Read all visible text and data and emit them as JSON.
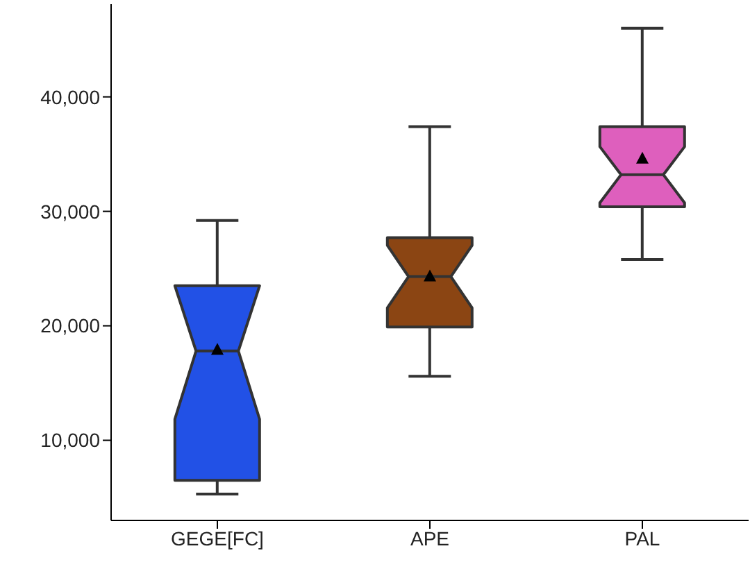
{
  "chart_data": {
    "type": "box",
    "categories": [
      "GEGE[FC]",
      "APE",
      "PAL"
    ],
    "colors": [
      "#2251e6",
      "#8b4513",
      "#de5fbd"
    ],
    "boxes": [
      {
        "low": 5300,
        "q1": 6500,
        "median": 17800,
        "q3": 23500,
        "high": 29200,
        "mean": 17900
      },
      {
        "low": 15600,
        "q1": 19900,
        "median": 24300,
        "q3": 27700,
        "high": 37400,
        "mean": 24300
      },
      {
        "low": 25800,
        "q1": 30400,
        "median": 33200,
        "q3": 37400,
        "high": 46000,
        "mean": 34600
      }
    ],
    "ylim": [
      3000,
      48100
    ],
    "yticks": [
      {
        "value": 10000,
        "label": "10,000"
      },
      {
        "value": 20000,
        "label": "20,000"
      },
      {
        "value": 30000,
        "label": "30,000"
      },
      {
        "value": 40000,
        "label": "40,000"
      }
    ]
  }
}
